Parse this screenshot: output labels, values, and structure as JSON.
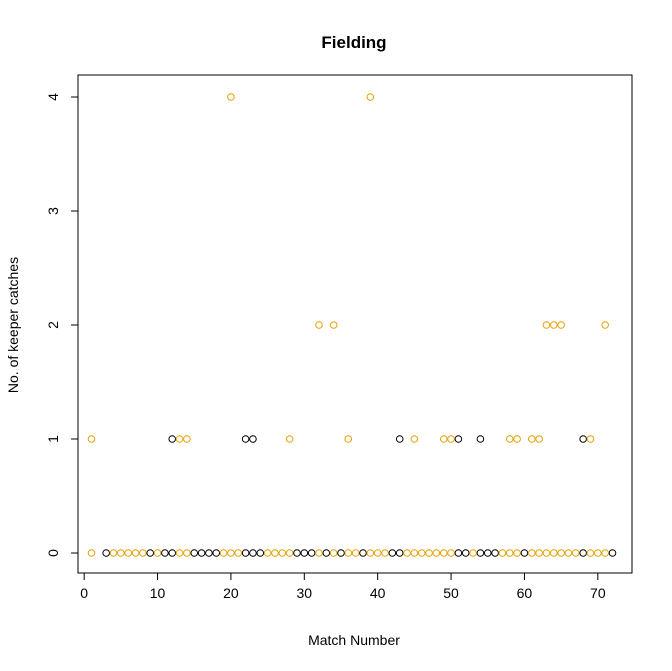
{
  "chart_data": {
    "type": "scatter",
    "title": "Fielding",
    "xlabel": "Match Number",
    "ylabel": "No. of keeper catches",
    "xlim": [
      0,
      73
    ],
    "ylim": [
      0,
      4
    ],
    "x_ticks": [
      "0",
      "10",
      "20",
      "30",
      "40",
      "50",
      "60",
      "70"
    ],
    "y_ticks": [
      "0",
      "1",
      "2",
      "3",
      "4"
    ],
    "grid": false,
    "legend": "none",
    "marker": "open-circle",
    "colors": {
      "orange": "#E69F00",
      "black": "#000000"
    },
    "points": [
      {
        "x": 1,
        "y": 1,
        "color": "orange"
      },
      {
        "x": 1,
        "y": 0,
        "color": "orange"
      },
      {
        "x": 3,
        "y": 0,
        "color": "black"
      },
      {
        "x": 4,
        "y": 0,
        "color": "orange"
      },
      {
        "x": 5,
        "y": 0,
        "color": "orange"
      },
      {
        "x": 6,
        "y": 0,
        "color": "orange"
      },
      {
        "x": 7,
        "y": 0,
        "color": "orange"
      },
      {
        "x": 8,
        "y": 0,
        "color": "orange"
      },
      {
        "x": 9,
        "y": 0,
        "color": "black"
      },
      {
        "x": 10,
        "y": 0,
        "color": "orange"
      },
      {
        "x": 11,
        "y": 0,
        "color": "black"
      },
      {
        "x": 12,
        "y": 1,
        "color": "black"
      },
      {
        "x": 12,
        "y": 0,
        "color": "black"
      },
      {
        "x": 13,
        "y": 1,
        "color": "orange"
      },
      {
        "x": 13,
        "y": 0,
        "color": "orange"
      },
      {
        "x": 14,
        "y": 1,
        "color": "orange"
      },
      {
        "x": 14,
        "y": 0,
        "color": "orange"
      },
      {
        "x": 15,
        "y": 0,
        "color": "black"
      },
      {
        "x": 16,
        "y": 0,
        "color": "black"
      },
      {
        "x": 17,
        "y": 0,
        "color": "black"
      },
      {
        "x": 18,
        "y": 0,
        "color": "black"
      },
      {
        "x": 19,
        "y": 0,
        "color": "orange"
      },
      {
        "x": 20,
        "y": 4,
        "color": "orange"
      },
      {
        "x": 20,
        "y": 0,
        "color": "orange"
      },
      {
        "x": 21,
        "y": 0,
        "color": "orange"
      },
      {
        "x": 22,
        "y": 1,
        "color": "black"
      },
      {
        "x": 22,
        "y": 0,
        "color": "black"
      },
      {
        "x": 23,
        "y": 1,
        "color": "black"
      },
      {
        "x": 23,
        "y": 0,
        "color": "black"
      },
      {
        "x": 24,
        "y": 0,
        "color": "black"
      },
      {
        "x": 25,
        "y": 0,
        "color": "orange"
      },
      {
        "x": 26,
        "y": 0,
        "color": "orange"
      },
      {
        "x": 27,
        "y": 0,
        "color": "orange"
      },
      {
        "x": 28,
        "y": 1,
        "color": "orange"
      },
      {
        "x": 28,
        "y": 0,
        "color": "orange"
      },
      {
        "x": 29,
        "y": 0,
        "color": "black"
      },
      {
        "x": 30,
        "y": 0,
        "color": "black"
      },
      {
        "x": 31,
        "y": 0,
        "color": "black"
      },
      {
        "x": 32,
        "y": 2,
        "color": "orange"
      },
      {
        "x": 32,
        "y": 0,
        "color": "orange"
      },
      {
        "x": 33,
        "y": 0,
        "color": "black"
      },
      {
        "x": 34,
        "y": 2,
        "color": "orange"
      },
      {
        "x": 34,
        "y": 0,
        "color": "orange"
      },
      {
        "x": 35,
        "y": 0,
        "color": "black"
      },
      {
        "x": 36,
        "y": 1,
        "color": "orange"
      },
      {
        "x": 36,
        "y": 0,
        "color": "orange"
      },
      {
        "x": 37,
        "y": 0,
        "color": "orange"
      },
      {
        "x": 38,
        "y": 0,
        "color": "black"
      },
      {
        "x": 39,
        "y": 4,
        "color": "orange"
      },
      {
        "x": 39,
        "y": 0,
        "color": "orange"
      },
      {
        "x": 40,
        "y": 0,
        "color": "orange"
      },
      {
        "x": 41,
        "y": 0,
        "color": "orange"
      },
      {
        "x": 42,
        "y": 0,
        "color": "black"
      },
      {
        "x": 43,
        "y": 1,
        "color": "black"
      },
      {
        "x": 43,
        "y": 0,
        "color": "black"
      },
      {
        "x": 44,
        "y": 0,
        "color": "orange"
      },
      {
        "x": 45,
        "y": 1,
        "color": "orange"
      },
      {
        "x": 45,
        "y": 0,
        "color": "orange"
      },
      {
        "x": 46,
        "y": 0,
        "color": "orange"
      },
      {
        "x": 47,
        "y": 0,
        "color": "orange"
      },
      {
        "x": 48,
        "y": 0,
        "color": "orange"
      },
      {
        "x": 49,
        "y": 1,
        "color": "orange"
      },
      {
        "x": 49,
        "y": 0,
        "color": "orange"
      },
      {
        "x": 50,
        "y": 1,
        "color": "orange"
      },
      {
        "x": 50,
        "y": 0,
        "color": "orange"
      },
      {
        "x": 51,
        "y": 1,
        "color": "black"
      },
      {
        "x": 51,
        "y": 0,
        "color": "black"
      },
      {
        "x": 52,
        "y": 0,
        "color": "black"
      },
      {
        "x": 53,
        "y": 0,
        "color": "orange"
      },
      {
        "x": 54,
        "y": 1,
        "color": "black"
      },
      {
        "x": 54,
        "y": 0,
        "color": "black"
      },
      {
        "x": 55,
        "y": 0,
        "color": "black"
      },
      {
        "x": 56,
        "y": 0,
        "color": "black"
      },
      {
        "x": 57,
        "y": 0,
        "color": "orange"
      },
      {
        "x": 58,
        "y": 1,
        "color": "orange"
      },
      {
        "x": 58,
        "y": 0,
        "color": "orange"
      },
      {
        "x": 59,
        "y": 1,
        "color": "orange"
      },
      {
        "x": 59,
        "y": 0,
        "color": "orange"
      },
      {
        "x": 60,
        "y": 0,
        "color": "black"
      },
      {
        "x": 61,
        "y": 1,
        "color": "orange"
      },
      {
        "x": 61,
        "y": 0,
        "color": "orange"
      },
      {
        "x": 62,
        "y": 1,
        "color": "orange"
      },
      {
        "x": 62,
        "y": 0,
        "color": "orange"
      },
      {
        "x": 63,
        "y": 2,
        "color": "orange"
      },
      {
        "x": 63,
        "y": 0,
        "color": "orange"
      },
      {
        "x": 64,
        "y": 2,
        "color": "orange"
      },
      {
        "x": 64,
        "y": 0,
        "color": "orange"
      },
      {
        "x": 65,
        "y": 2,
        "color": "orange"
      },
      {
        "x": 65,
        "y": 0,
        "color": "orange"
      },
      {
        "x": 66,
        "y": 0,
        "color": "orange"
      },
      {
        "x": 67,
        "y": 0,
        "color": "orange"
      },
      {
        "x": 68,
        "y": 1,
        "color": "black"
      },
      {
        "x": 68,
        "y": 0,
        "color": "black"
      },
      {
        "x": 69,
        "y": 1,
        "color": "orange"
      },
      {
        "x": 69,
        "y": 0,
        "color": "orange"
      },
      {
        "x": 70,
        "y": 0,
        "color": "orange"
      },
      {
        "x": 71,
        "y": 2,
        "color": "orange"
      },
      {
        "x": 71,
        "y": 0,
        "color": "orange"
      },
      {
        "x": 72,
        "y": 0,
        "color": "black"
      }
    ]
  }
}
